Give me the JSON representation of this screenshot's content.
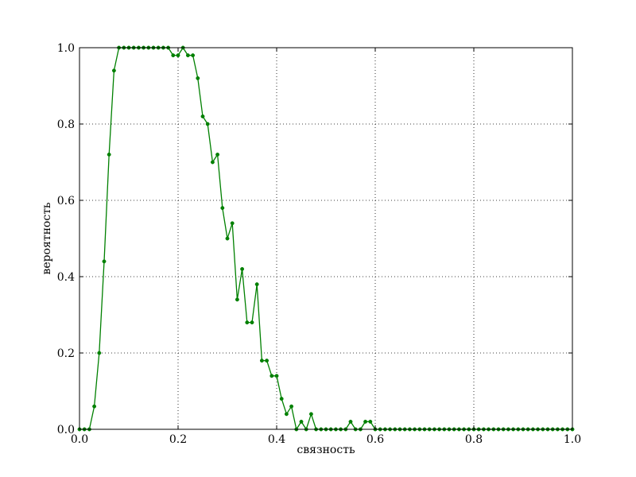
{
  "chart_data": {
    "type": "line",
    "xlabel": "связность",
    "ylabel": "вероятность",
    "xlim": [
      0,
      1
    ],
    "ylim": [
      0,
      1
    ],
    "xticks": [
      "0.0",
      "0.2",
      "0.4",
      "0.6",
      "0.8",
      "1.0"
    ],
    "yticks": [
      "0.0",
      "0.2",
      "0.4",
      "0.6",
      "0.8",
      "1.0"
    ],
    "grid": true,
    "grid_style": "dotted",
    "series": [
      {
        "color": "#008000",
        "marker": "dot",
        "x": [
          0.0,
          0.01,
          0.02,
          0.03,
          0.04,
          0.05,
          0.06,
          0.07,
          0.08,
          0.09,
          0.1,
          0.11,
          0.12,
          0.13,
          0.14,
          0.15,
          0.16,
          0.17,
          0.18,
          0.19,
          0.2,
          0.21,
          0.22,
          0.23,
          0.24,
          0.25,
          0.26,
          0.27,
          0.28,
          0.29,
          0.3,
          0.31,
          0.32,
          0.33,
          0.34,
          0.35,
          0.36,
          0.37,
          0.38,
          0.39,
          0.4,
          0.41,
          0.42,
          0.43,
          0.44,
          0.45,
          0.46,
          0.47,
          0.48,
          0.49,
          0.5,
          0.51,
          0.52,
          0.53,
          0.54,
          0.55,
          0.56,
          0.57,
          0.58,
          0.59,
          0.6,
          0.61,
          0.62,
          0.63,
          0.64,
          0.65,
          0.66,
          0.67,
          0.68,
          0.69,
          0.7,
          0.71,
          0.72,
          0.73,
          0.74,
          0.75,
          0.76,
          0.77,
          0.78,
          0.79,
          0.8,
          0.81,
          0.82,
          0.83,
          0.84,
          0.85,
          0.86,
          0.87,
          0.88,
          0.89,
          0.9,
          0.91,
          0.92,
          0.93,
          0.94,
          0.95,
          0.96,
          0.97,
          0.98,
          0.99,
          1.0
        ],
        "y": [
          0.0,
          0.0,
          0.0,
          0.06,
          0.2,
          0.44,
          0.72,
          0.94,
          1.0,
          1.0,
          1.0,
          1.0,
          1.0,
          1.0,
          1.0,
          1.0,
          1.0,
          1.0,
          1.0,
          0.98,
          0.98,
          1.0,
          0.98,
          0.98,
          0.92,
          0.82,
          0.8,
          0.7,
          0.72,
          0.58,
          0.5,
          0.54,
          0.34,
          0.42,
          0.28,
          0.28,
          0.38,
          0.18,
          0.18,
          0.14,
          0.14,
          0.08,
          0.04,
          0.06,
          0.0,
          0.02,
          0.0,
          0.04,
          0.0,
          0.0,
          0.0,
          0.0,
          0.0,
          0.0,
          0.0,
          0.02,
          0.0,
          0.0,
          0.02,
          0.02,
          0.0,
          0.0,
          0.0,
          0.0,
          0.0,
          0.0,
          0.0,
          0.0,
          0.0,
          0.0,
          0.0,
          0.0,
          0.0,
          0.0,
          0.0,
          0.0,
          0.0,
          0.0,
          0.0,
          0.0,
          0.0,
          0.0,
          0.0,
          0.0,
          0.0,
          0.0,
          0.0,
          0.0,
          0.0,
          0.0,
          0.0,
          0.0,
          0.0,
          0.0,
          0.0,
          0.0,
          0.0,
          0.0,
          0.0,
          0.0,
          0.0
        ]
      }
    ]
  }
}
